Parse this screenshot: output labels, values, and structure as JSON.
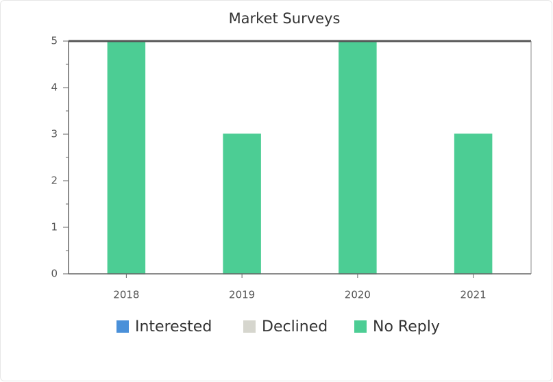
{
  "chart_data": {
    "type": "stacked-bar",
    "title": "Market Surveys",
    "categories": [
      "2018",
      "2019",
      "2020",
      "2021"
    ],
    "series": [
      {
        "name": "Interested",
        "color": "#4a90d9",
        "values": [
          0,
          0,
          0,
          0
        ]
      },
      {
        "name": "Declined",
        "color": "#d6d6ce",
        "values": [
          0,
          0,
          0,
          0
        ]
      },
      {
        "name": "No Reply",
        "color": "#4ccd94",
        "values": [
          5,
          3,
          5,
          3
        ]
      }
    ],
    "ylim": [
      0,
      5
    ],
    "yticks": [
      0,
      1,
      2,
      3,
      4,
      5
    ],
    "legend": "bottom"
  }
}
